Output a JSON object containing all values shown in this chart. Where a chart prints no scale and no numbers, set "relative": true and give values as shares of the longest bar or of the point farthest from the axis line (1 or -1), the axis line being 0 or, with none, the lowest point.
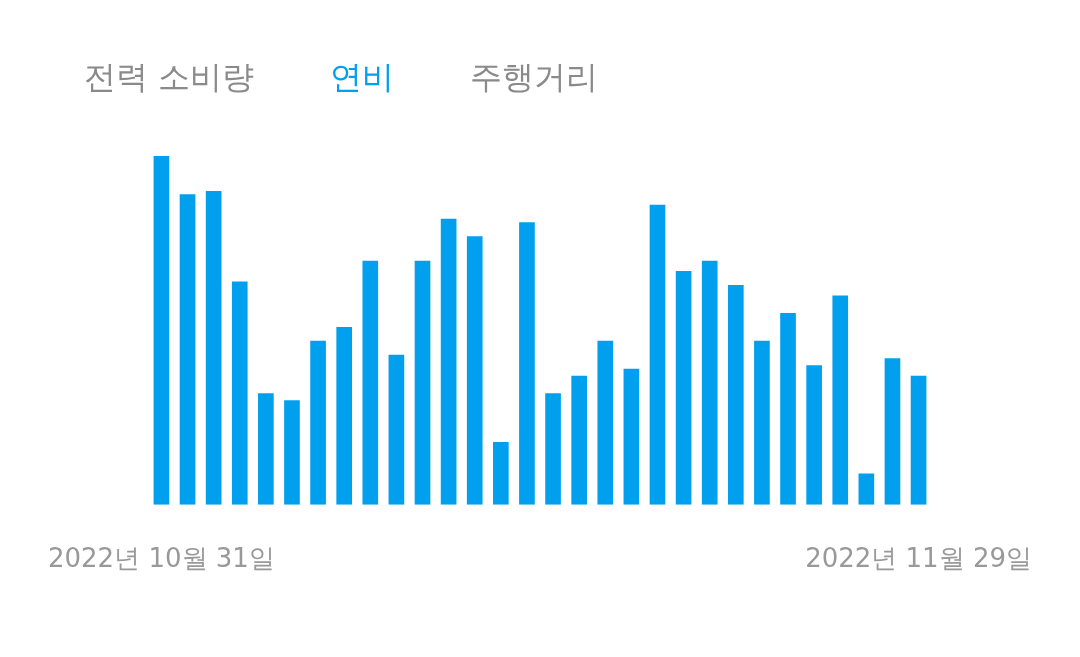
{
  "chart_data": {
    "type": "bar",
    "title": "연비",
    "annotations": [
      "전력 소비량",
      "주행거리"
    ],
    "categories": [
      "2022년 10월 31일",
      null,
      null,
      null,
      null,
      null,
      null,
      null,
      null,
      null,
      null,
      null,
      null,
      null,
      null,
      null,
      null,
      null,
      null,
      null,
      null,
      null,
      null,
      null,
      null,
      null,
      null,
      null,
      null,
      "2022년 11월 29일"
    ],
    "values": [
      1.0,
      0.89,
      0.9,
      0.64,
      0.32,
      0.3,
      0.47,
      0.51,
      0.7,
      0.43,
      0.7,
      0.82,
      0.77,
      0.18,
      0.81,
      0.32,
      0.37,
      0.47,
      0.39,
      0.86,
      0.67,
      0.7,
      0.63,
      0.47,
      0.55,
      0.4,
      0.6,
      0.09,
      0.42,
      0.37
    ],
    "color": "#00a0ee",
    "relative": true,
    "grid": false,
    "legend": false
  }
}
